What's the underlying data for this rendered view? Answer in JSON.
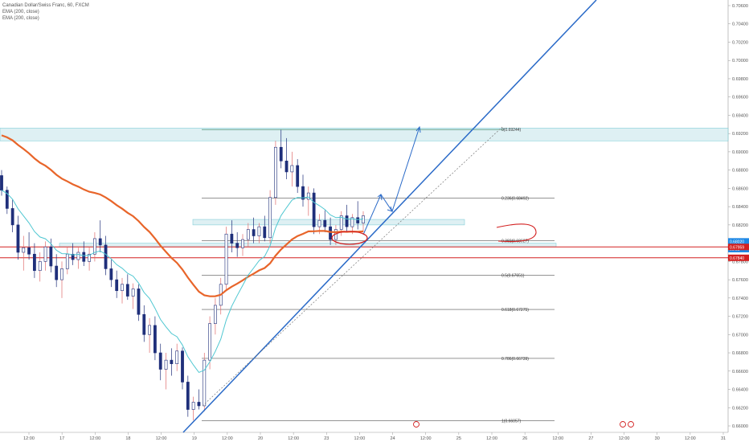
{
  "legend": {
    "symbol_line": "Canadian Dollar/Swiss Franc, 60, FXCM",
    "ema_line_1": "EMA (200, close)",
    "ema_line_2": "EMA (200, close)"
  },
  "colors": {
    "up_candle": "#1f2f7a",
    "down_candle": "#1f2f7a",
    "wick_red": "#e06b6b",
    "ema_orange": "#e8652a",
    "ema_cyan": "#4fc7d1",
    "fib_line": "#555555",
    "fib_top": "#2a7b5a",
    "zone_fill": "#d9eef2",
    "zone_border": "#6fc6d3",
    "trend_blue": "#2a6ac8",
    "red_level": "#d32020",
    "price_blue": "#1e88e5"
  },
  "chart_data": {
    "type": "candlestick",
    "symbol": "Canadian Dollar/Swiss Franc, 60, FXCM",
    "y_range": [
      0.66,
      0.706
    ],
    "y_ticks": [
      0.706,
      0.704,
      0.702,
      0.7,
      0.698,
      0.696,
      0.694,
      0.692,
      0.69,
      0.688,
      0.686,
      0.684,
      0.682,
      0.678,
      0.676,
      0.674,
      0.672,
      0.67,
      0.668,
      0.666,
      0.664,
      0.662,
      0.66
    ],
    "y_tick_labels": [
      "0.70600",
      "0.70400",
      "0.70200",
      "0.70000",
      "0.69800",
      "0.69600",
      "0.69400",
      "0.69200",
      "0.69000",
      "0.68800",
      "0.68600",
      "0.68400",
      "0.68200",
      "0.67800",
      "0.67600",
      "0.67400",
      "0.67200",
      "0.67000",
      "0.66800",
      "0.66600",
      "0.66400",
      "0.66200",
      "0.66000"
    ],
    "x_labels": [
      "12:00",
      "17",
      "12:00",
      "18",
      "12:00",
      "19",
      "12:00",
      "20",
      "12:00",
      "23",
      "12:00",
      "24",
      "12:00",
      "25",
      "12:00",
      "26",
      "12:00",
      "27",
      "12:00",
      "30",
      "12:00",
      "31"
    ],
    "price_tags": [
      {
        "label": "0.68020",
        "value": 0.6802,
        "color": "#1e88e5"
      },
      {
        "label": "00:55",
        "value": 0.67935,
        "color": "#1e88e5"
      },
      {
        "label": "0.67959",
        "value": 0.67959,
        "color": "#d32020"
      },
      {
        "label": "0.67840",
        "value": 0.6784,
        "color": "#d32020"
      }
    ],
    "fib_levels": [
      {
        "label": "0(0.69244)",
        "value": 0.69244
      },
      {
        "label": "0.236(0.68492)",
        "value": 0.68492
      },
      {
        "label": "0.382(0.68027)",
        "value": 0.68027
      },
      {
        "label": "0.5(0.67651)",
        "value": 0.67651
      },
      {
        "label": "0.618(0.67275)",
        "value": 0.67275
      },
      {
        "label": "0.786(0.66739)",
        "value": 0.66739
      },
      {
        "label": "1(0.66057)",
        "value": 0.66057
      }
    ],
    "zones": [
      {
        "from": 0.6912,
        "to": 0.6926
      },
      {
        "from": 0.682,
        "to": 0.6826
      },
      {
        "from": 0.6796,
        "to": 0.68
      }
    ],
    "red_levels": [
      0.67959,
      0.6784
    ],
    "candles": [
      {
        "o": 0.6874,
        "h": 0.688,
        "l": 0.6852,
        "c": 0.6858
      },
      {
        "o": 0.6858,
        "h": 0.6862,
        "l": 0.6832,
        "c": 0.6838
      },
      {
        "o": 0.6838,
        "h": 0.6848,
        "l": 0.6812,
        "c": 0.682
      },
      {
        "o": 0.682,
        "h": 0.683,
        "l": 0.6782,
        "c": 0.679
      },
      {
        "o": 0.679,
        "h": 0.6808,
        "l": 0.677,
        "c": 0.6795
      },
      {
        "o": 0.6795,
        "h": 0.6812,
        "l": 0.6782,
        "c": 0.6788
      },
      {
        "o": 0.6788,
        "h": 0.68,
        "l": 0.6762,
        "c": 0.677
      },
      {
        "o": 0.677,
        "h": 0.679,
        "l": 0.6758,
        "c": 0.678
      },
      {
        "o": 0.678,
        "h": 0.6802,
        "l": 0.677,
        "c": 0.6796
      },
      {
        "o": 0.6796,
        "h": 0.6805,
        "l": 0.6768,
        "c": 0.6775
      },
      {
        "o": 0.6775,
        "h": 0.6788,
        "l": 0.6752,
        "c": 0.676
      },
      {
        "o": 0.676,
        "h": 0.678,
        "l": 0.674,
        "c": 0.6772
      },
      {
        "o": 0.6772,
        "h": 0.6796,
        "l": 0.6766,
        "c": 0.6788
      },
      {
        "o": 0.6788,
        "h": 0.68,
        "l": 0.6776,
        "c": 0.6782
      },
      {
        "o": 0.6782,
        "h": 0.6795,
        "l": 0.6772,
        "c": 0.679
      },
      {
        "o": 0.679,
        "h": 0.6802,
        "l": 0.6775,
        "c": 0.678
      },
      {
        "o": 0.678,
        "h": 0.6796,
        "l": 0.677,
        "c": 0.6788
      },
      {
        "o": 0.6788,
        "h": 0.6812,
        "l": 0.678,
        "c": 0.6805
      },
      {
        "o": 0.6805,
        "h": 0.6825,
        "l": 0.679,
        "c": 0.6798
      },
      {
        "o": 0.6798,
        "h": 0.6808,
        "l": 0.6765,
        "c": 0.6772
      },
      {
        "o": 0.6772,
        "h": 0.6782,
        "l": 0.6752,
        "c": 0.676
      },
      {
        "o": 0.676,
        "h": 0.677,
        "l": 0.674,
        "c": 0.6748
      },
      {
        "o": 0.6748,
        "h": 0.6762,
        "l": 0.6734,
        "c": 0.6755
      },
      {
        "o": 0.6755,
        "h": 0.6766,
        "l": 0.6738,
        "c": 0.6742
      },
      {
        "o": 0.6742,
        "h": 0.6756,
        "l": 0.6728,
        "c": 0.675
      },
      {
        "o": 0.675,
        "h": 0.6755,
        "l": 0.6715,
        "c": 0.6722
      },
      {
        "o": 0.6722,
        "h": 0.6732,
        "l": 0.6692,
        "c": 0.67
      },
      {
        "o": 0.67,
        "h": 0.6718,
        "l": 0.668,
        "c": 0.671
      },
      {
        "o": 0.671,
        "h": 0.672,
        "l": 0.6672,
        "c": 0.668
      },
      {
        "o": 0.668,
        "h": 0.669,
        "l": 0.665,
        "c": 0.6662
      },
      {
        "o": 0.6662,
        "h": 0.668,
        "l": 0.664,
        "c": 0.6672
      },
      {
        "o": 0.6672,
        "h": 0.6685,
        "l": 0.6655,
        "c": 0.6668
      },
      {
        "o": 0.6668,
        "h": 0.669,
        "l": 0.666,
        "c": 0.6682
      },
      {
        "o": 0.6682,
        "h": 0.6686,
        "l": 0.664,
        "c": 0.6648
      },
      {
        "o": 0.6648,
        "h": 0.6655,
        "l": 0.661,
        "c": 0.6618
      },
      {
        "o": 0.6618,
        "h": 0.6632,
        "l": 0.6606,
        "c": 0.6626
      },
      {
        "o": 0.6626,
        "h": 0.664,
        "l": 0.6618,
        "c": 0.6622
      },
      {
        "o": 0.6622,
        "h": 0.668,
        "l": 0.6616,
        "c": 0.6672
      },
      {
        "o": 0.6672,
        "h": 0.672,
        "l": 0.6662,
        "c": 0.6712
      },
      {
        "o": 0.6712,
        "h": 0.674,
        "l": 0.67,
        "c": 0.6732
      },
      {
        "o": 0.6732,
        "h": 0.6762,
        "l": 0.6722,
        "c": 0.6755
      },
      {
        "o": 0.6755,
        "h": 0.6818,
        "l": 0.6748,
        "c": 0.681
      },
      {
        "o": 0.681,
        "h": 0.6825,
        "l": 0.679,
        "c": 0.68
      },
      {
        "o": 0.68,
        "h": 0.6812,
        "l": 0.6785,
        "c": 0.6795
      },
      {
        "o": 0.6795,
        "h": 0.681,
        "l": 0.6786,
        "c": 0.6804
      },
      {
        "o": 0.6804,
        "h": 0.6822,
        "l": 0.6796,
        "c": 0.6815
      },
      {
        "o": 0.6815,
        "h": 0.6828,
        "l": 0.68,
        "c": 0.6808
      },
      {
        "o": 0.6808,
        "h": 0.6822,
        "l": 0.68,
        "c": 0.6818
      },
      {
        "o": 0.6818,
        "h": 0.683,
        "l": 0.6802,
        "c": 0.6806
      },
      {
        "o": 0.6806,
        "h": 0.6858,
        "l": 0.68,
        "c": 0.685
      },
      {
        "o": 0.685,
        "h": 0.6912,
        "l": 0.6842,
        "c": 0.6905
      },
      {
        "o": 0.6905,
        "h": 0.6924,
        "l": 0.6882,
        "c": 0.689
      },
      {
        "o": 0.689,
        "h": 0.6915,
        "l": 0.687,
        "c": 0.6878
      },
      {
        "o": 0.6878,
        "h": 0.69,
        "l": 0.6862,
        "c": 0.6885
      },
      {
        "o": 0.6885,
        "h": 0.6892,
        "l": 0.6855,
        "c": 0.6862
      },
      {
        "o": 0.6862,
        "h": 0.6875,
        "l": 0.684,
        "c": 0.6848
      },
      {
        "o": 0.6848,
        "h": 0.6862,
        "l": 0.683,
        "c": 0.6855
      },
      {
        "o": 0.6855,
        "h": 0.686,
        "l": 0.681,
        "c": 0.6818
      },
      {
        "o": 0.6818,
        "h": 0.6832,
        "l": 0.681,
        "c": 0.6825
      },
      {
        "o": 0.6825,
        "h": 0.6836,
        "l": 0.6812,
        "c": 0.6818
      },
      {
        "o": 0.6818,
        "h": 0.6828,
        "l": 0.6798,
        "c": 0.6804
      },
      {
        "o": 0.6804,
        "h": 0.682,
        "l": 0.6798,
        "c": 0.6815
      },
      {
        "o": 0.6815,
        "h": 0.6835,
        "l": 0.6808,
        "c": 0.683
      },
      {
        "o": 0.683,
        "h": 0.6842,
        "l": 0.6812,
        "c": 0.6818
      },
      {
        "o": 0.6818,
        "h": 0.6832,
        "l": 0.681,
        "c": 0.6828
      },
      {
        "o": 0.6828,
        "h": 0.6846,
        "l": 0.6815,
        "c": 0.6822
      },
      {
        "o": 0.6822,
        "h": 0.6835,
        "l": 0.6812,
        "c": 0.683
      }
    ]
  }
}
